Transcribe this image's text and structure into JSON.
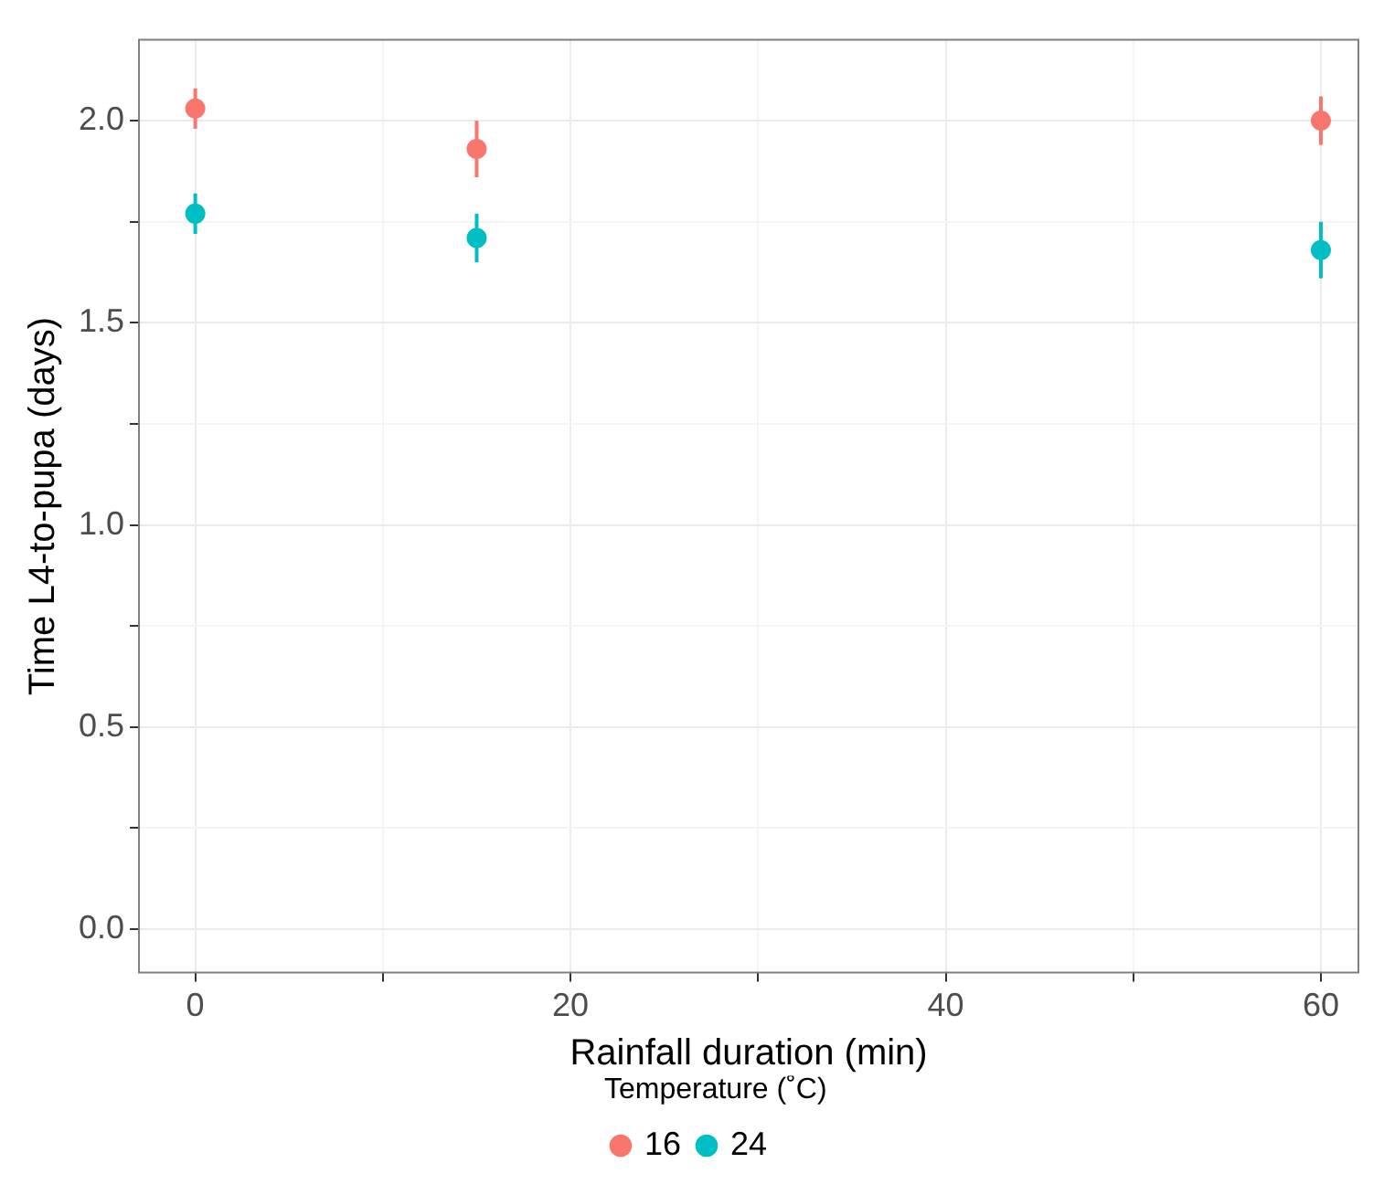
{
  "chart_data": {
    "type": "scatter",
    "xlabel": "Rainfall duration (min)",
    "ylabel": "Time L4-to-pupa (days)",
    "legend_title": "Temperature (˚C)",
    "xlim": [
      -3,
      62
    ],
    "ylim": [
      -0.107,
      2.2
    ],
    "xticks": [
      0,
      {
        "value": 10,
        "label": null
      },
      20,
      {
        "value": 30,
        "label": null
      },
      40,
      {
        "value": 50,
        "label": null
      },
      60
    ],
    "yticks": [
      {
        "value": 0,
        "label": "0.0"
      },
      {
        "value": 0.25,
        "label": null
      },
      {
        "value": 0.5,
        "label": "0.5"
      },
      {
        "value": 0.75,
        "label": null
      },
      {
        "value": 1,
        "label": "1.0"
      },
      {
        "value": 1.25,
        "label": null
      },
      {
        "value": 1.5,
        "label": "1.5"
      },
      {
        "value": 1.75,
        "label": null
      },
      {
        "value": 2,
        "label": "2.0"
      }
    ],
    "grid": true,
    "legend": "bottom",
    "marker": "circle",
    "series": [
      {
        "name": "16",
        "color": "#f8766d",
        "x": [
          0,
          15,
          60
        ],
        "values": [
          2.03,
          1.93,
          2.0
        ],
        "errors": [
          [
            1.98,
            2.08
          ],
          [
            1.86,
            2.0
          ],
          [
            1.94,
            2.06
          ]
        ]
      },
      {
        "name": "24",
        "color": "#00bfc4",
        "x": [
          0,
          15,
          60
        ],
        "values": [
          1.77,
          1.71,
          1.68
        ],
        "errors": [
          [
            1.72,
            1.82
          ],
          [
            1.65,
            1.77
          ],
          [
            1.61,
            1.75
          ]
        ]
      }
    ]
  }
}
